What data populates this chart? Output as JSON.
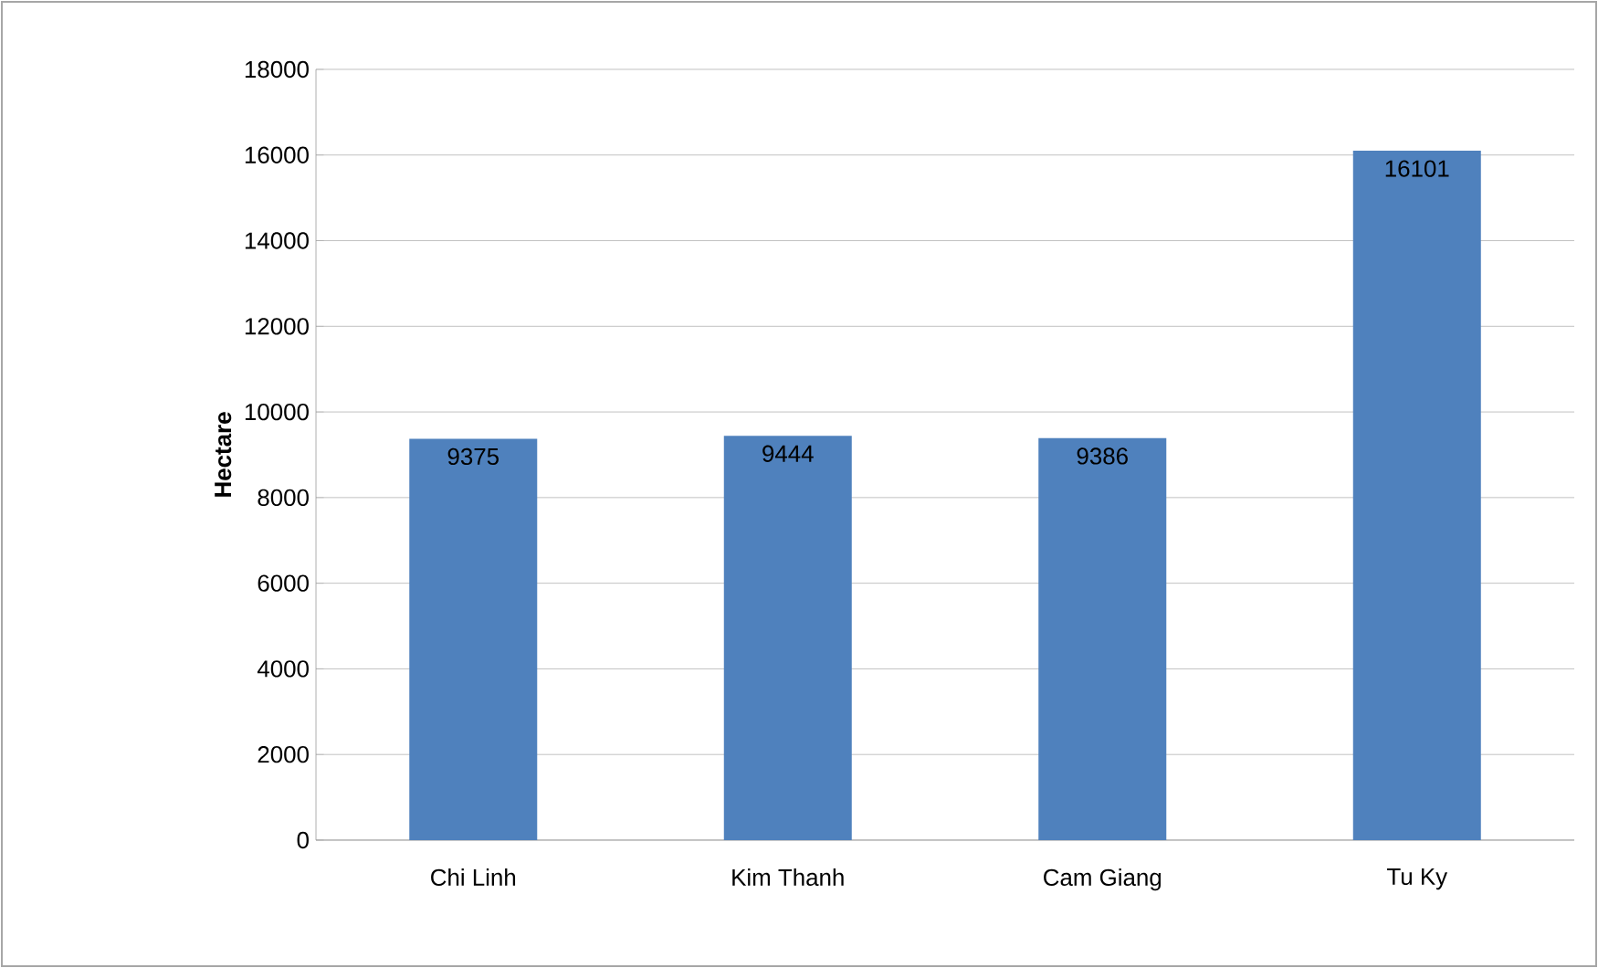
{
  "chart_data": {
    "type": "bar",
    "ylabel": "Hectare",
    "categories": [
      "Chi Linh",
      "Kim Thanh",
      "Cam Giang",
      "Tu Ky"
    ],
    "values": [
      9375,
      9444,
      9386,
      16101
    ],
    "color": "#4f81bd",
    "ylim": [
      0,
      18000
    ],
    "yticks": [
      0,
      2000,
      4000,
      6000,
      8000,
      10000,
      12000,
      14000,
      16000,
      18000
    ],
    "grid": "y",
    "data_labels": true
  }
}
